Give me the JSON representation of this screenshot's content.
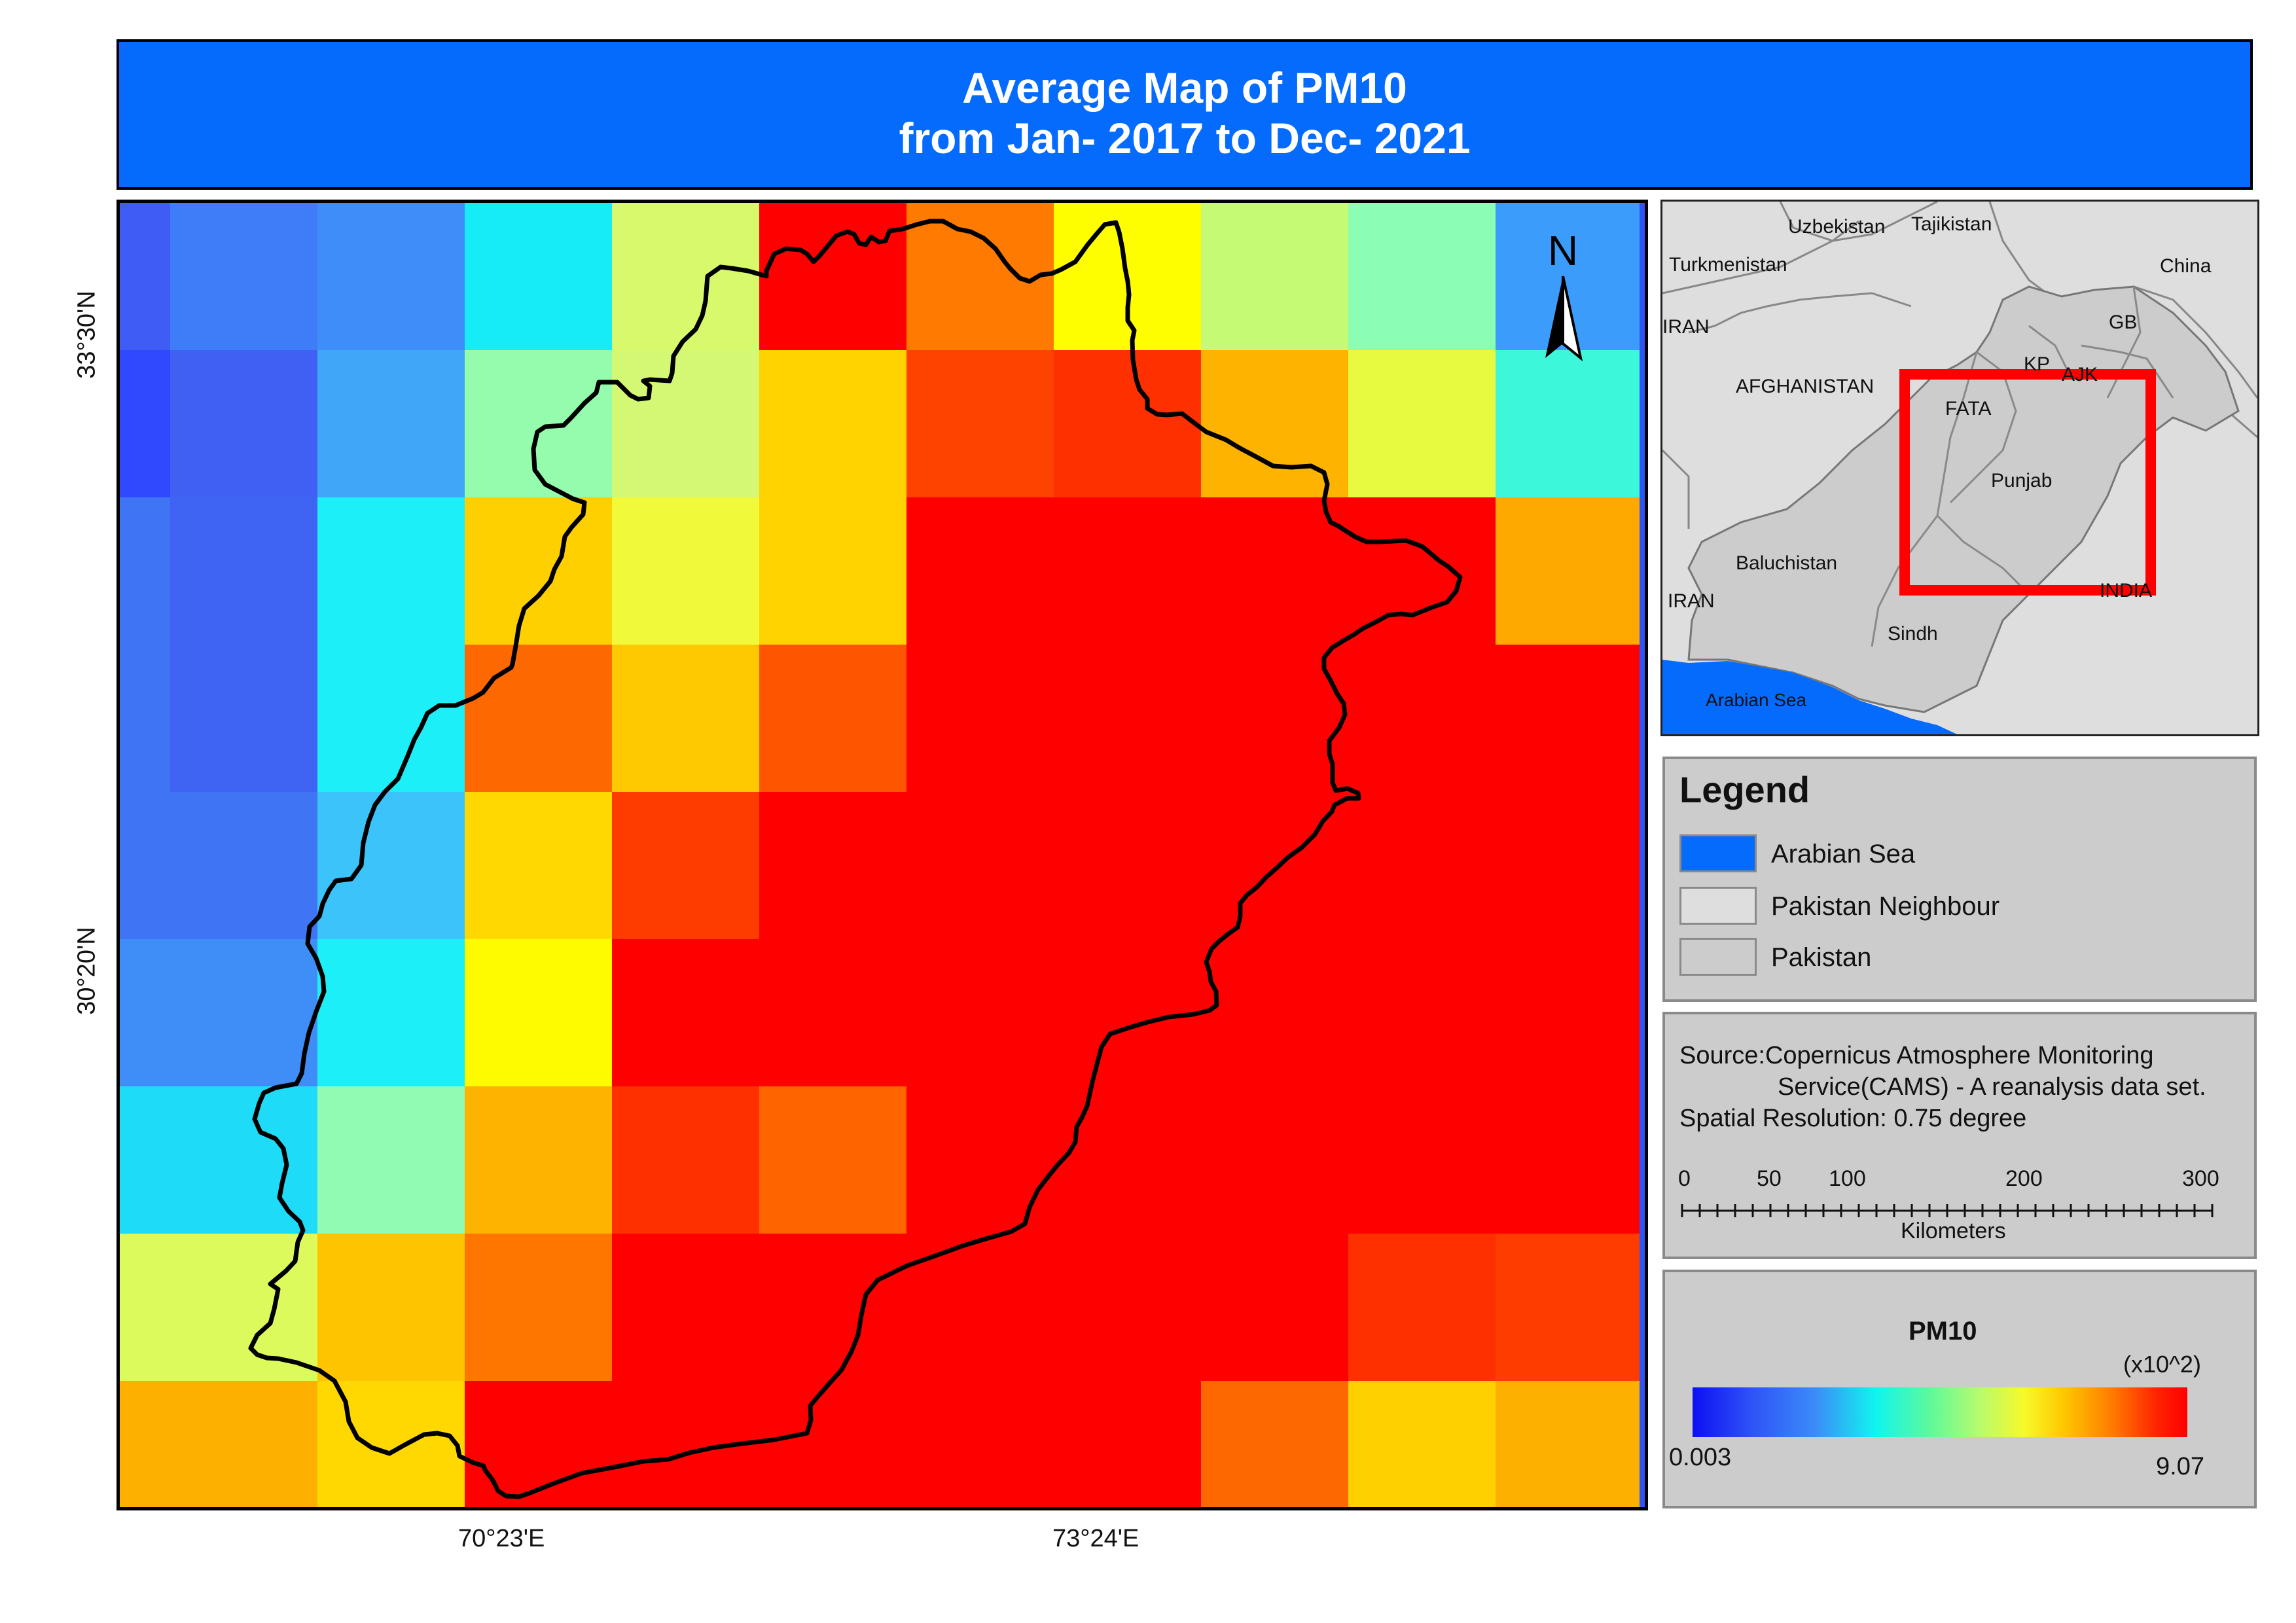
{
  "title": {
    "line1": "Average Map of PM10",
    "line2": "from Jan- 2017 to Dec- 2021"
  },
  "axes": {
    "lat_labels": [
      "33°30'N",
      "30°20'N"
    ],
    "lon_labels": [
      "70°23'E",
      "73°24'E"
    ]
  },
  "north_arrow": {
    "label": "N",
    "icon": "north-arrow-icon"
  },
  "grid_colors": [
    [
      "#3f5cf5",
      "#3f7cf7",
      "#3f8df8",
      "#16ecf7",
      "#d8f96c",
      "#fe0000",
      "#fe7a00",
      "#fefe00",
      "#c5fb74",
      "#8bfdb5",
      "#3c9cfb"
    ],
    [
      "#3049ff",
      "#3f60f3",
      "#3fa6f8",
      "#94fcac",
      "#d4f873",
      "#fed300",
      "#fe4300",
      "#fe3000",
      "#feb300",
      "#e8fa40",
      "#3cf7d9"
    ],
    [
      "#3f74f4",
      "#3f64f3",
      "#1deff8",
      "#fed000",
      "#f0fa3a",
      "#fed300",
      "#fe0000",
      "#fe0000",
      "#fe0000",
      "#fe0000",
      "#fea900"
    ],
    [
      "#3f74f4",
      "#3f64f3",
      "#1deff8",
      "#fe6800",
      "#fec900",
      "#fe5600",
      "#fe0000",
      "#fe0000",
      "#fe0000",
      "#fe0000",
      "#fe0000"
    ],
    [
      "#3f74f4",
      "#3f74f4",
      "#3cc3fa",
      "#fed800",
      "#fe3c00",
      "#fe0000",
      "#fe0000",
      "#fe0000",
      "#fe0000",
      "#fe0000",
      "#fe0000"
    ],
    [
      "#3f8ef8",
      "#3f8ef8",
      "#1deff8",
      "#fefa00",
      "#fe0000",
      "#fe0000",
      "#fe0000",
      "#fe0000",
      "#fe0000",
      "#fe0000",
      "#fe0000"
    ],
    [
      "#1edcf8",
      "#1edcf8",
      "#91fbb3",
      "#feb300",
      "#fe3000",
      "#fe6500",
      "#fe0000",
      "#fe0000",
      "#fe0000",
      "#fe0000",
      "#fe0000"
    ],
    [
      "#dcfa5c",
      "#dcfa5c",
      "#fec400",
      "#fe7600",
      "#fe0000",
      "#fe0000",
      "#fe0000",
      "#fe0000",
      "#fe0000",
      "#fe3000",
      "#fe3c00"
    ],
    [
      "#feb000",
      "#feb000",
      "#fed800",
      "#fe0000",
      "#fe0000",
      "#fe0000",
      "#fe0000",
      "#fe0000",
      "#fe6800",
      "#fed000",
      "#feb000"
    ]
  ],
  "inset_map": {
    "labels": {
      "uzbekistan": "Uzbekistan",
      "tajikistan": "Tajikistan",
      "turkmenistan": "Turkmenistan",
      "china": "China",
      "iran_top": "IRAN",
      "gb": "GB",
      "kp": "KP",
      "ajk": "AJK",
      "afghanistan": "AFGHANISTAN",
      "fata": "FATA",
      "punjab": "Punjab",
      "baluchistan": "Baluchistan",
      "iran_bottom": "IRAN",
      "india": "INDIA",
      "sindh": "Sindh",
      "arabian_sea": "Arabian Sea"
    },
    "highlight_color": "#fe0000"
  },
  "legend": {
    "title": "Legend",
    "items": [
      {
        "label": "Arabian Sea",
        "color": "#056bfc"
      },
      {
        "label": "Pakistan Neighbour",
        "color": "#dedede"
      },
      {
        "label": "Pakistan",
        "color": "#cccccc"
      }
    ]
  },
  "source": {
    "line1": "Source:Copernicus Atmosphere Monitoring",
    "line2": "Service(CAMS) - A reanalysis data set.",
    "line3": "Spatial Resolution: 0.75  degree"
  },
  "scale_bar": {
    "ticks": [
      "0",
      "50",
      "100",
      "200",
      "300"
    ],
    "unit": "Kilometers"
  },
  "colorbar": {
    "title": "PM10",
    "multiplier": "(x10^2)",
    "min": "0.003",
    "max": "9.07"
  }
}
